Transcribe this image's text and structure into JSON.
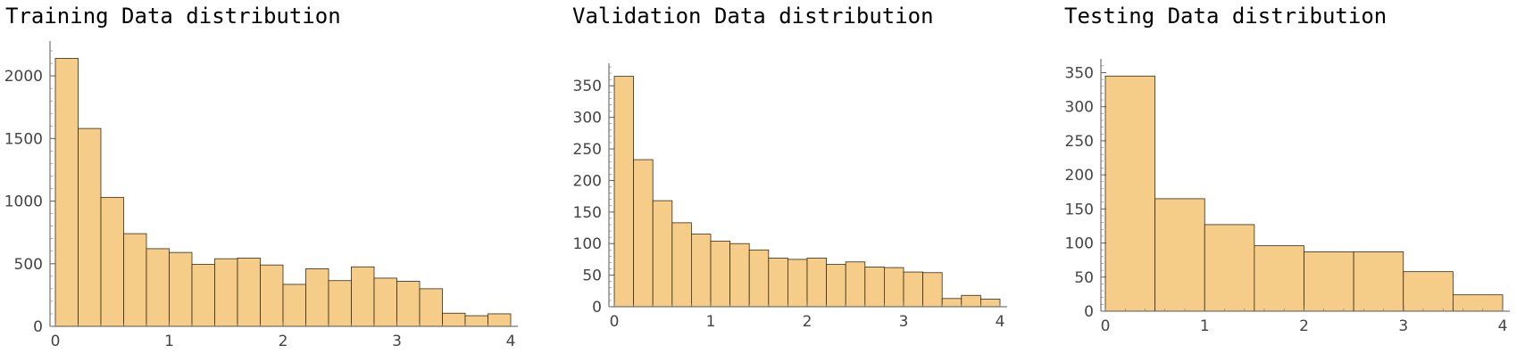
{
  "chart_data": [
    {
      "type": "bar",
      "title": "Training Data distribution",
      "bin_edges": [
        0,
        0.2,
        0.4,
        0.6,
        0.8,
        1.0,
        1.2,
        1.4,
        1.6,
        1.8,
        2.0,
        2.2,
        2.4,
        2.6,
        2.8,
        3.0,
        3.2,
        3.4,
        3.6,
        3.8,
        4.0
      ],
      "values": [
        2140,
        1580,
        1030,
        740,
        620,
        590,
        495,
        540,
        545,
        490,
        335,
        460,
        365,
        475,
        385,
        360,
        300,
        105,
        85,
        100
      ],
      "xlim": [
        0,
        4
      ],
      "ylim": [
        0,
        2250
      ],
      "xticks": [
        0,
        1,
        2,
        3,
        4
      ],
      "yticks": [
        0,
        500,
        1000,
        1500,
        2000
      ],
      "xtick_labels": [
        "0",
        "1",
        "2",
        "3",
        "4"
      ],
      "ytick_labels": [
        "0",
        "500",
        "1000",
        "1500",
        "2000"
      ],
      "bar_color": "#f6cd88"
    },
    {
      "type": "bar",
      "title": "Validation Data distribution",
      "bin_edges": [
        0,
        0.2,
        0.4,
        0.6,
        0.8,
        1.0,
        1.2,
        1.4,
        1.6,
        1.8,
        2.0,
        2.2,
        2.4,
        2.6,
        2.8,
        3.0,
        3.2,
        3.4,
        3.6,
        3.8,
        4.0
      ],
      "values": [
        365,
        233,
        168,
        133,
        115,
        104,
        100,
        90,
        77,
        75,
        77,
        67,
        71,
        63,
        62,
        55,
        54,
        13,
        18,
        12
      ],
      "xlim": [
        0,
        4
      ],
      "ylim": [
        0,
        380
      ],
      "xticks": [
        0,
        1,
        2,
        3,
        4
      ],
      "yticks": [
        0,
        50,
        100,
        150,
        200,
        250,
        300,
        350
      ],
      "xtick_labels": [
        "0",
        "1",
        "2",
        "3",
        "4"
      ],
      "ytick_labels": [
        "0",
        "50",
        "100",
        "150",
        "200",
        "250",
        "300",
        "350"
      ],
      "bar_color": "#f6cd88"
    },
    {
      "type": "bar",
      "title": "Testing Data distribution",
      "bin_edges": [
        0,
        0.5,
        1.0,
        1.5,
        2.0,
        2.5,
        3.0,
        3.5,
        4.0
      ],
      "values": [
        345,
        165,
        127,
        96,
        87,
        87,
        58,
        24
      ],
      "xlim": [
        0,
        4
      ],
      "ylim": [
        0,
        365
      ],
      "xticks": [
        0,
        1,
        2,
        3,
        4
      ],
      "yticks": [
        0,
        50,
        100,
        150,
        200,
        250,
        300,
        350
      ],
      "xtick_labels": [
        "0",
        "1",
        "2",
        "3",
        "4"
      ],
      "ytick_labels": [
        "0",
        "50",
        "100",
        "150",
        "200",
        "250",
        "300",
        "350"
      ],
      "bar_color": "#f6cd88"
    }
  ]
}
